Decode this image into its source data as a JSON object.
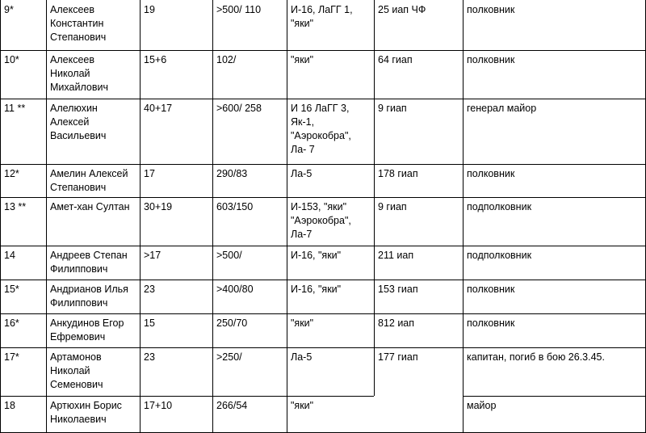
{
  "table": {
    "rows": [
      {
        "num": "9*",
        "name": "Алексеев\nКонстантин\nСтепанович",
        "victories": "19",
        "sorties": ">500/ 110",
        "aircraft": "И-16, ЛаГГ 1,\n\"яки\"",
        "unit": "25 иап ЧФ",
        "rank": "полковник"
      },
      {
        "num": "10*",
        "name": "Алексеев\nНиколай\nМихайлович",
        "victories": "15+6",
        "sorties": "102/",
        "aircraft": "\"яки\"",
        "unit": "64 гиап",
        "rank": "полковник"
      },
      {
        "num": "11 **",
        "name": "Алелюхин\nАлексей\nВасильевич",
        "victories": "40+17",
        "sorties": ">600/ 258",
        "aircraft": "И 16 ЛаГГ 3,\nЯк-1,\n\"Аэрокобра\",\nЛа- 7",
        "unit": "9 гиап",
        "rank": "генерал майор"
      },
      {
        "num": "12*",
        "name": "Амелин Алексей\nСтепанович",
        "victories": "17",
        "sorties": "290/83",
        "aircraft": "Ла-5",
        "unit": "178 гиап",
        "rank": "полковник"
      },
      {
        "num": "13 **",
        "name": "Амет-хан Султан",
        "victories": "30+19",
        "sorties": "603/150",
        "aircraft": "И-153, \"яки\"\n\"Аэрокобра\",\nЛа-7",
        "unit": "9 гиап",
        "rank": "подполковник"
      },
      {
        "num": "14",
        "name": "Андреев Степан\nФилиппович",
        "victories": ">17",
        "sorties": ">500/",
        "aircraft": "И-16, \"яки\"",
        "unit": "211 иап",
        "rank": "подполковник"
      },
      {
        "num": "15*",
        "name": "Андрианов Илья\nФилиппович",
        "victories": "23",
        "sorties": ">400/80",
        "aircraft": "И-16, \"яки\"",
        "unit": "153 гиап",
        "rank": "полковник"
      },
      {
        "num": "16*",
        "name": "Анкудинов Егор\nЕфремович",
        "victories": "15",
        "sorties": "250/70",
        "aircraft": "\"яки\"",
        "unit": "812 иап",
        "rank": "полковник"
      },
      {
        "num": "17*",
        "name": "Артамонов\nНиколай\nСеменович",
        "victories": "23",
        "sorties": ">250/",
        "aircraft": "Ла-5",
        "unit": "177 гиап",
        "rank": "капитан, погиб в бою 26.3.45."
      },
      {
        "num": "18",
        "name": "Артюхин Борис\nНиколаевич",
        "victories": "17+10",
        "sorties": "266/54",
        "aircraft": "\"яки\"",
        "unit": "",
        "rank": "майор"
      }
    ]
  }
}
